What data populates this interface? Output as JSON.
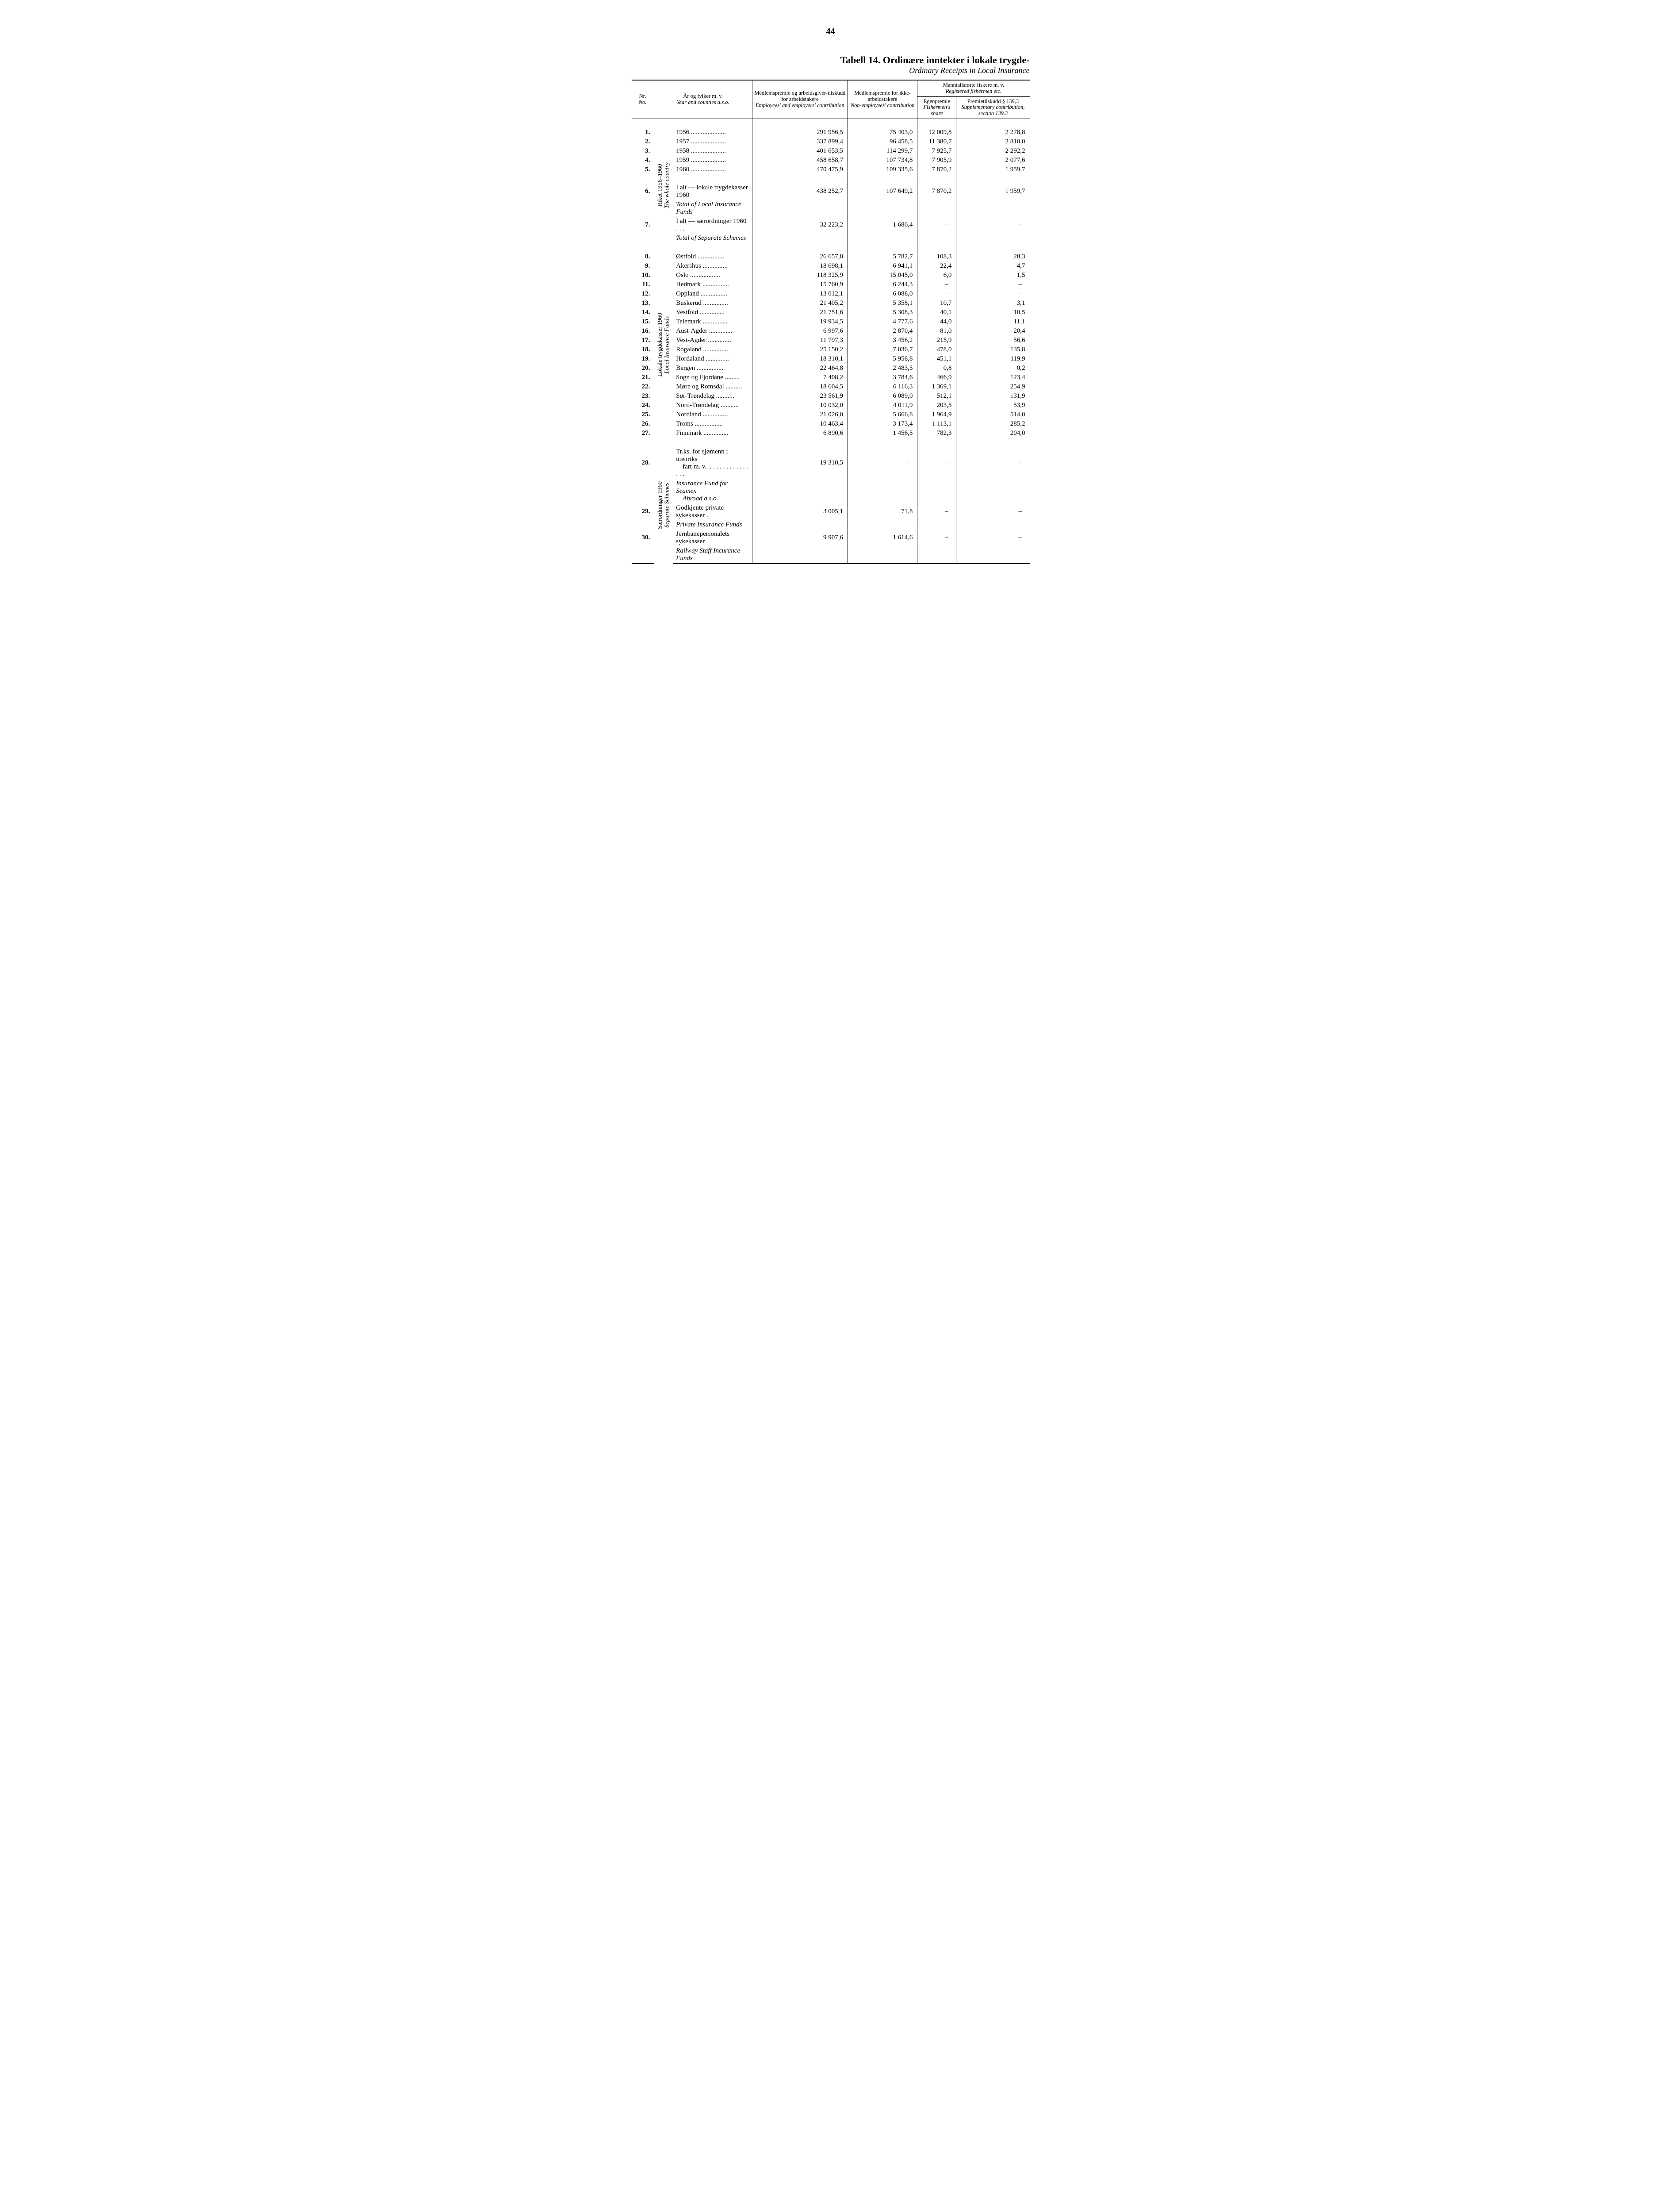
{
  "page_number": "44",
  "title_main": "Tabell 14.  Ordinære inntekter i lokale trygde-",
  "title_sub": "Ordinary Receipts in Local Insurance",
  "header": {
    "nr_no": "Nr.\nNo.",
    "year_counties": "År og fylker m. v.",
    "year_counties_it": "Year and counties a.s.o.",
    "col1": "Medlemspremie og arbeidsgiver-tilskudd for arbeidstakere",
    "col1_it": "Employees' and employers' contribution",
    "col2": "Medlemspremie for ikke-arbeidstakere",
    "col2_it": "Non-employees' contribution",
    "fisher_top": "Manntallsførte fiskere m. v.",
    "fisher_top_it": "Registered fishermen etc.",
    "col3": "Egenpremie",
    "col3_it": "Fishermen's share",
    "col4": "Premietilskudd § 139,3",
    "col4_it": "Supplementary contribution, section 139.3"
  },
  "group_labels": {
    "riket": "Riket 1956–1960",
    "riket_it": "The whole country",
    "lokale": "Lokale trygdekasser 1960",
    "lokale_it": "Local Insurance Funds",
    "saer": "Særordninger 1960",
    "saer_it": "Separate Schemes"
  },
  "rows_riket": [
    {
      "n": "1.",
      "label": "1956",
      "c1": "291 956,5",
      "c2": "75 403,0",
      "c3": "12 009,8",
      "c4": "2 278,8"
    },
    {
      "n": "2.",
      "label": "1957",
      "c1": "337 899,4",
      "c2": "96 458,5",
      "c3": "11 380,7",
      "c4": "2 810,0"
    },
    {
      "n": "3.",
      "label": "1958",
      "c1": "401 653,5",
      "c2": "114 299,7",
      "c3": "7 925,7",
      "c4": "2 292,2"
    },
    {
      "n": "4.",
      "label": "1959",
      "c1": "458 658,7",
      "c2": "107 734,8",
      "c3": "7 905,9",
      "c4": "2 077,6"
    },
    {
      "n": "5.",
      "label": "1960",
      "c1": "470 475,9",
      "c2": "109 335,6",
      "c3": "7 870,2",
      "c4": "1 959,7"
    }
  ],
  "totals_riket": [
    {
      "n": "6.",
      "label": "I alt — lokale trygdekasser 1960",
      "label_it": "Total of Local Insurance Funds",
      "c1": "438 252,7",
      "c2": "107 649,2",
      "c3": "7 870,2",
      "c4": "1 959,7"
    },
    {
      "n": "7.",
      "label": "I alt — særordninger 1960  . . .",
      "label_it": "Total of Separate Schemes",
      "c1": "32 223,2",
      "c2": "1 686,4",
      "c3": "–",
      "c4": "–"
    }
  ],
  "rows_lokale": [
    {
      "n": "8.",
      "label": "Østfold",
      "c1": "26 657,8",
      "c2": "5 782,7",
      "c3": "108,3",
      "c4": "28,3"
    },
    {
      "n": "9.",
      "label": "Akershus",
      "c1": "18 698,1",
      "c2": "6 941,1",
      "c3": "22,4",
      "c4": "4,7"
    },
    {
      "n": "10.",
      "label": "Oslo",
      "c1": "118 325,9",
      "c2": "15 045,0",
      "c3": "6,0",
      "c4": "1,5"
    },
    {
      "n": "11.",
      "label": "Hedmark",
      "c1": "15 760,9",
      "c2": "6 244,3",
      "c3": "–",
      "c4": "–"
    },
    {
      "n": "12.",
      "label": "Oppland",
      "c1": "13 012,1",
      "c2": "6 088,0",
      "c3": "–",
      "c4": "–"
    },
    {
      "n": "13.",
      "label": "Buskerud",
      "c1": "21 405,2",
      "c2": "5 358,1",
      "c3": "10,7",
      "c4": "3,1"
    },
    {
      "n": "14.",
      "label": "Vestfold",
      "c1": "21 751,6",
      "c2": "5 308,3",
      "c3": "40,1",
      "c4": "10,5"
    },
    {
      "n": "15.",
      "label": "Telemark",
      "c1": "19 934,5",
      "c2": "4 777,6",
      "c3": "44,0",
      "c4": "11,1"
    },
    {
      "n": "16.",
      "label": "Aust-Agder",
      "c1": "6 997,6",
      "c2": "2 870,4",
      "c3": "81,0",
      "c4": "20,4"
    },
    {
      "n": "17.",
      "label": "Vest-Agder",
      "c1": "11 797,3",
      "c2": "3 456,2",
      "c3": "215,9",
      "c4": "56,6"
    },
    {
      "n": "18.",
      "label": "Rogaland",
      "c1": "25 150,2",
      "c2": "7 036,7",
      "c3": "478,0",
      "c4": "135,8"
    },
    {
      "n": "19.",
      "label": "Hordaland",
      "c1": "18 310,1",
      "c2": "5 958,8",
      "c3": "451,1",
      "c4": "119,9"
    },
    {
      "n": "20.",
      "label": "Bergen",
      "c1": "22 464,8",
      "c2": "2 483,5",
      "c3": "0,8",
      "c4": "0,2"
    },
    {
      "n": "21.",
      "label": "Sogn og Fjordane",
      "c1": "7 408,2",
      "c2": "3 784,6",
      "c3": "466,9",
      "c4": "123,4"
    },
    {
      "n": "22.",
      "label": "Møre og Romsdal",
      "c1": "18 604,5",
      "c2": "6 116,3",
      "c3": "1 369,1",
      "c4": "254,9"
    },
    {
      "n": "23.",
      "label": "Sør-Trøndelag",
      "c1": "23 561,9",
      "c2": "6 089,0",
      "c3": "512,1",
      "c4": "131,9"
    },
    {
      "n": "24.",
      "label": "Nord-Trøndelag",
      "c1": "10 032,0",
      "c2": "4 011,9",
      "c3": "203,5",
      "c4": "53,9"
    },
    {
      "n": "25.",
      "label": "Nordland",
      "c1": "21 026,0",
      "c2": "5 666,8",
      "c3": "1 964,9",
      "c4": "514,0"
    },
    {
      "n": "26.",
      "label": "Troms",
      "c1": "10 463,4",
      "c2": "3 173,4",
      "c3": "1 113,1",
      "c4": "285,2"
    },
    {
      "n": "27.",
      "label": "Finnmark",
      "c1": "6 890,6",
      "c2": "1 456,5",
      "c3": "782,3",
      "c4": "204,0"
    }
  ],
  "rows_saer": [
    {
      "n": "28.",
      "label": "Tr.ks. for sjømenn i utenriks fart m. v.",
      "label_it": "Insurance Fund for Seamen Abroad a.s.o.",
      "c1": "19 310,5",
      "c2": "–",
      "c3": "–",
      "c4": "–"
    },
    {
      "n": "29.",
      "label": "Godkjente private sykekasser .",
      "label_it": "Private Insurance Funds",
      "c1": "3 005,1",
      "c2": "71,8",
      "c3": "–",
      "c4": "–"
    },
    {
      "n": "30.",
      "label": "Jernbanepersonalets sykekasser",
      "label_it": "Railway Staff Incurance Funds",
      "c1": "9 907,6",
      "c2": "1 614,6",
      "c3": "–",
      "c4": "–"
    }
  ],
  "style": {
    "font_family": "Times New Roman",
    "page_bg": "#ffffff",
    "text_color": "#000000",
    "rule_color": "#000000",
    "body_fontsize_pt": 15,
    "header_fontsize_pt": 12.5,
    "title_fontsize_pt": 22
  }
}
